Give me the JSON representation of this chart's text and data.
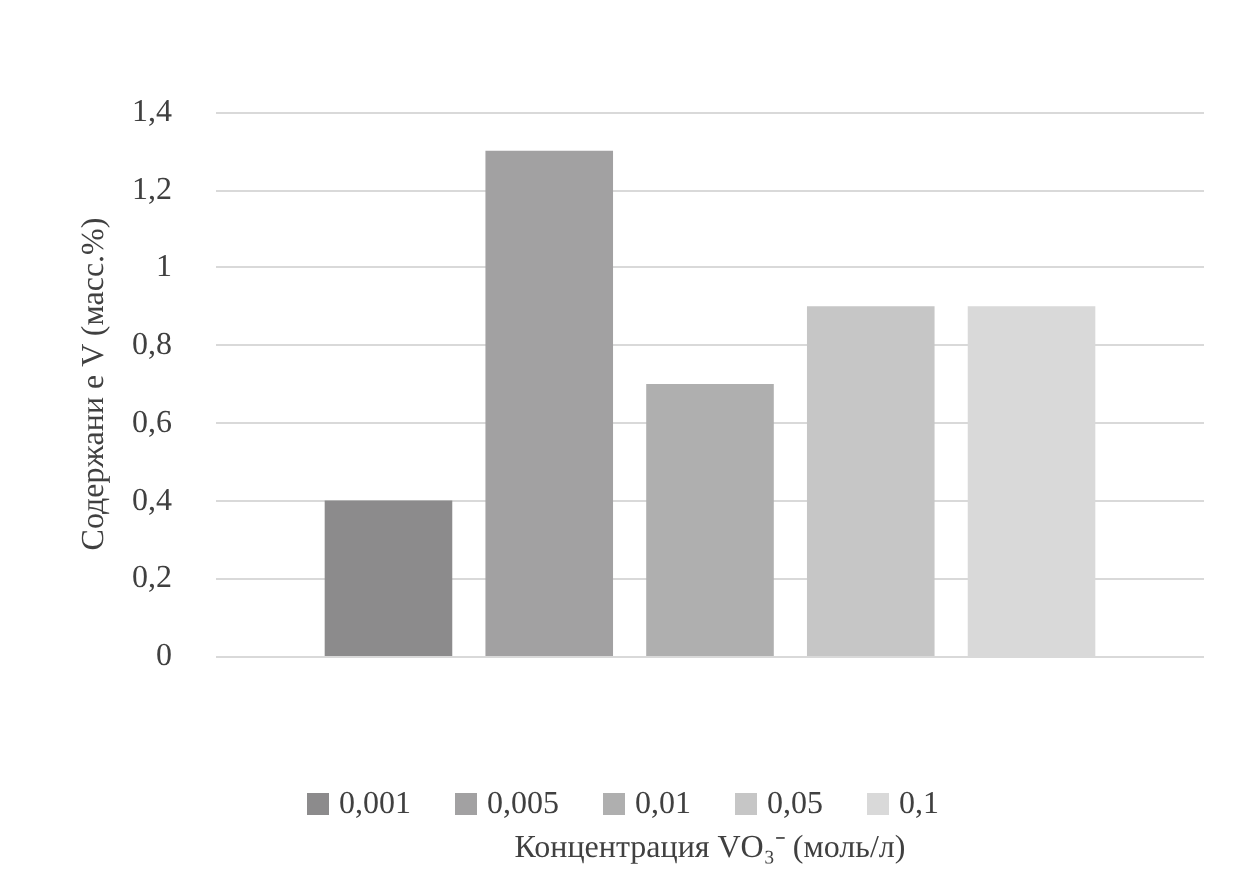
{
  "chart_data": {
    "type": "bar",
    "xlabel": "Концентрация VO₃⁻ (моль/л)",
    "ylabel": "Содержани е V (масс.%)",
    "categories": [
      null
    ],
    "series": [
      {
        "name": "0,001",
        "color": "#8c8b8c",
        "values": [
          0.4
        ]
      },
      {
        "name": "0,005",
        "color": "#a2a1a2",
        "values": [
          1.3
        ]
      },
      {
        "name": "0,01",
        "color": "#afafaf",
        "values": [
          0.7
        ]
      },
      {
        "name": "0,05",
        "color": "#c6c6c6",
        "values": [
          0.9
        ]
      },
      {
        "name": "0,1",
        "color": "#d9d9d9",
        "values": [
          0.9
        ]
      }
    ],
    "ylim": [
      0,
      1.4
    ],
    "yticks": [
      0,
      {
        "value": 0.2,
        "label": "0,2"
      },
      {
        "value": 0.4,
        "label": "0,4"
      },
      {
        "value": 0.6,
        "label": "0,6"
      },
      {
        "value": 0.8,
        "label": "0,8"
      },
      1,
      {
        "value": 1.2,
        "label": "1,2"
      },
      {
        "value": 1.4,
        "label": "1,4"
      }
    ],
    "grid": "y",
    "legend": "bottom"
  }
}
